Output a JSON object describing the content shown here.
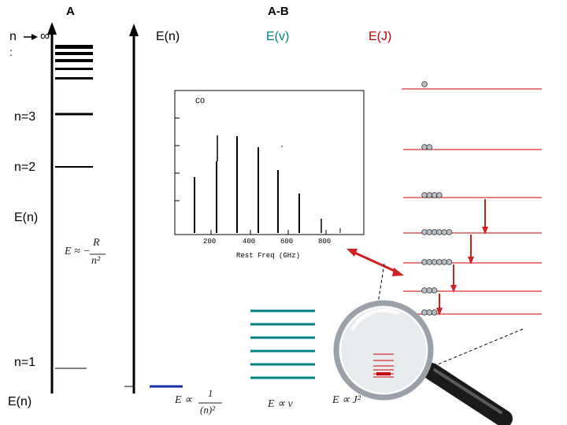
{
  "header": {
    "left": "A",
    "right": "A-B"
  },
  "panel_a": {
    "n_label": "n",
    "infinity": "∞",
    "colon": ":",
    "levels": [
      {
        "label": "n=3"
      },
      {
        "label": "n=2"
      },
      {
        "label": "n=1"
      }
    ],
    "mid_axis_label": "E(n)",
    "bottom_axis_label": "E(n)",
    "formula": {
      "lhs": "E ≈ −",
      "num": "R",
      "den": "n²"
    }
  },
  "panel_ab": {
    "col_en": "E(n)",
    "col_ev": "E(v)",
    "col_ej": "E(J)",
    "formula_n": {
      "lhs": "E ∝",
      "num": "1",
      "den": "(n)²"
    },
    "formula_v": "E ∝ v",
    "formula_j": "E ∝ J²"
  },
  "spectrum": {
    "species": "CO",
    "xlabel": "Rest Freq (GHz)",
    "ticks": [
      "200",
      "400",
      "600",
      "800"
    ]
  },
  "rot_levels": {
    "circle_counts": [
      1,
      2,
      4,
      6,
      6,
      3,
      3
    ]
  },
  "colors": {
    "teal": "#008080",
    "red": "#cc0000",
    "blue": "#1a2fa8",
    "arrow_red": "#cc2222"
  }
}
